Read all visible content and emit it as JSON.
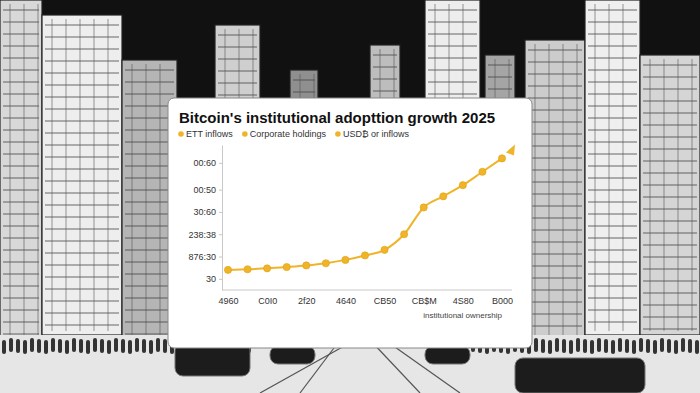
{
  "chart_data": {
    "type": "line",
    "title": "Bitcoin's institutional adopttion growth 2025",
    "legend_labels": [
      "ETT inflows",
      "Corporate holdings",
      "USD₿ or inflows"
    ],
    "x_label": "institutional ownership",
    "categories": [
      "4960",
      null,
      "C0I0",
      null,
      "2f20",
      null,
      "4640",
      null,
      "CB50",
      null,
      "CB$M",
      null,
      "4S80",
      null,
      "B000"
    ],
    "series": [
      {
        "color": "#f0b429",
        "marker": "circle",
        "line_style": "solid",
        "values": [
          34,
          34.3,
          34.7,
          35.3,
          36,
          37,
          38.5,
          40.5,
          43,
          50,
          62,
          67,
          72,
          78,
          84
        ]
      }
    ],
    "ylim": [
      25,
      90
    ],
    "yticks": [
      30,
      {
        "value": 40,
        "label": "876:30"
      },
      {
        "value": 50,
        "label": "238:38"
      },
      {
        "value": 60,
        "label": "30:60"
      },
      {
        "value": 70,
        "label": "00:50"
      },
      {
        "value": 82,
        "label": "00:60"
      }
    ],
    "grid": false
  }
}
